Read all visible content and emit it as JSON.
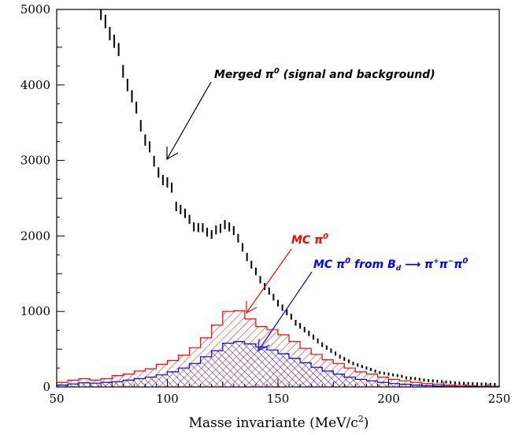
{
  "chart_data": {
    "type": "histogram",
    "xlabel": "Masse invariante (MeV/c",
    "xlabel_sup": "2",
    "xlabel_end": ")",
    "xlim": [
      50,
      250
    ],
    "ylim": [
      0,
      5000
    ],
    "xticks": [
      50,
      100,
      150,
      200,
      250
    ],
    "yticks": [
      0,
      1000,
      2000,
      3000,
      4000,
      5000
    ],
    "series": [
      {
        "name": "Merged π⁰ (signal and background)",
        "style": "error-bars",
        "color": "#000000",
        "x": [
          70,
          72,
          74,
          76,
          78,
          80,
          82,
          84,
          86,
          88,
          90,
          92,
          94,
          96,
          98,
          100,
          102,
          104,
          106,
          108,
          110,
          112,
          114,
          116,
          118,
          120,
          122,
          124,
          126,
          128,
          130,
          132,
          134,
          136,
          138,
          140,
          142,
          144,
          146,
          148,
          150,
          152,
          154,
          156,
          158,
          160,
          162,
          164,
          166,
          168,
          170,
          172,
          174,
          176,
          178,
          180,
          182,
          184,
          186,
          188,
          190,
          192,
          194,
          196,
          198,
          200,
          202,
          204,
          206,
          208,
          210,
          212,
          214,
          216,
          218,
          220,
          222,
          224,
          226,
          228,
          230,
          232,
          234,
          236,
          238,
          240,
          242,
          244,
          246,
          248
        ],
        "y": [
          4950,
          4840,
          4680,
          4580,
          4470,
          4180,
          4000,
          3850,
          3700,
          3460,
          3270,
          3180,
          2990,
          2840,
          2740,
          2710,
          2640,
          2390,
          2350,
          2300,
          2220,
          2120,
          2110,
          2110,
          2050,
          2020,
          2080,
          2100,
          2150,
          2120,
          2070,
          1970,
          1850,
          1720,
          1620,
          1530,
          1420,
          1330,
          1270,
          1190,
          1110,
          1050,
          990,
          930,
          850,
          810,
          760,
          710,
          660,
          610,
          560,
          520,
          480,
          440,
          400,
          370,
          340,
          310,
          290,
          270,
          250,
          230,
          210,
          190,
          180,
          170,
          160,
          150,
          140,
          120,
          115,
          110,
          100,
          90,
          85,
          80,
          75,
          70,
          65,
          60,
          55,
          50,
          48,
          45,
          42,
          40,
          38,
          36,
          34,
          32
        ]
      },
      {
        "name": "MC π⁰",
        "style": "hatched-histogram",
        "color": "#ff0000",
        "bin_edges": [
          50,
          55,
          60,
          65,
          70,
          75,
          80,
          85,
          90,
          95,
          100,
          105,
          110,
          115,
          120,
          125,
          130,
          135,
          140,
          145,
          150,
          155,
          160,
          165,
          170,
          175,
          180,
          185,
          190,
          195,
          200,
          205,
          210,
          215,
          220,
          225,
          230,
          235,
          240,
          245,
          250
        ],
        "values": [
          60,
          90,
          110,
          90,
          110,
          150,
          170,
          210,
          240,
          300,
          350,
          420,
          520,
          650,
          820,
          1000,
          1010,
          900,
          800,
          760,
          690,
          600,
          510,
          430,
          360,
          310,
          250,
          200,
          170,
          130,
          100,
          80,
          60,
          45,
          35,
          25,
          20,
          15,
          10,
          8
        ]
      },
      {
        "name": "MC π⁰ from B_d → π⁺π⁻π⁰",
        "style": "hatched-histogram",
        "color": "#0000ff",
        "bin_edges": [
          50,
          55,
          60,
          65,
          70,
          75,
          80,
          85,
          90,
          95,
          100,
          105,
          110,
          115,
          120,
          125,
          130,
          135,
          140,
          145,
          150,
          155,
          160,
          165,
          170,
          175,
          180,
          185,
          190,
          195,
          200,
          205,
          210,
          215,
          220,
          225,
          230,
          235,
          240,
          245,
          250
        ],
        "values": [
          25,
          40,
          55,
          50,
          60,
          70,
          90,
          110,
          130,
          160,
          200,
          250,
          310,
          400,
          480,
          580,
          600,
          570,
          530,
          490,
          440,
          380,
          320,
          260,
          210,
          170,
          130,
          100,
          80,
          60,
          45,
          35,
          25,
          18,
          12,
          8,
          6,
          4,
          3,
          2
        ]
      }
    ],
    "annotations": [
      {
        "label": "Merged π⁰ (signal and background)",
        "color": "#000000",
        "arrow_tip": [
          100,
          3000
        ]
      },
      {
        "label": "MC π⁰",
        "color": "#ff0000",
        "arrow_tip": [
          135,
          1000
        ]
      },
      {
        "label": "MC π⁰ from B_d → π⁺π⁻π⁰",
        "color": "#0000ff",
        "arrow_tip": [
          140,
          470
        ]
      }
    ]
  }
}
